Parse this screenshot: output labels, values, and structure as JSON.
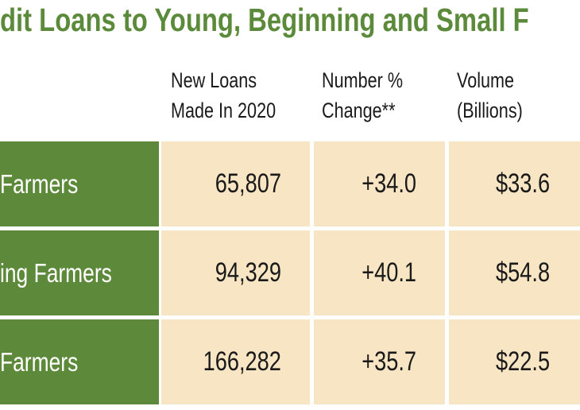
{
  "title": "dit Loans to Young, Beginning and Small F",
  "table": {
    "headers": [
      [
        "New Loans",
        "Made In 2020"
      ],
      [
        "Number %",
        "Change**"
      ],
      [
        "Volume",
        "(Billions)"
      ]
    ],
    "rows": [
      [
        "Farmers",
        "65,807",
        "+34.0",
        "$33.6"
      ],
      [
        "ing Farmers",
        "94,329",
        "+40.1",
        "$54.8"
      ],
      [
        "Farmers",
        "166,282",
        "+35.7",
        "$22.5"
      ]
    ]
  }
}
